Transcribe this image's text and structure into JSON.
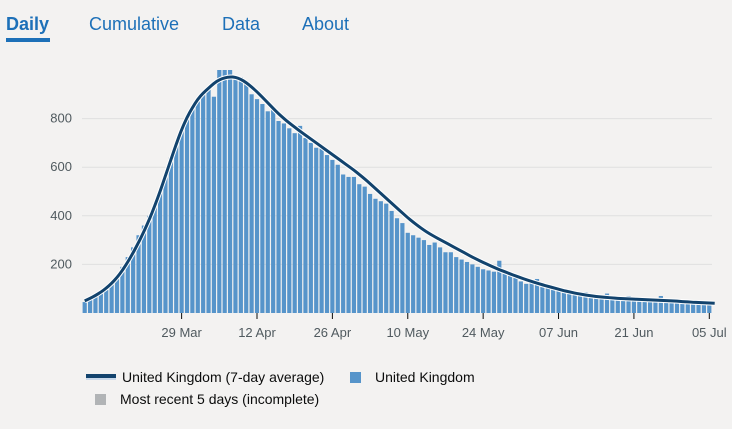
{
  "tabs": [
    {
      "label": "Daily",
      "active": true
    },
    {
      "label": "Cumulative",
      "active": false
    },
    {
      "label": "Data",
      "active": false
    },
    {
      "label": "About",
      "active": false
    }
  ],
  "legend": {
    "average_label": "United Kingdom (7-day average)",
    "bars_label": "United Kingdom",
    "incomplete_label": "Most recent 5 days (incomplete)"
  },
  "colors": {
    "bar": "#5694ca",
    "line": "#12436d",
    "incomplete": "#b1b4b6",
    "grid": "#e0e0e0",
    "tab": "#1d70b8"
  },
  "chart_data": {
    "type": "bar",
    "x_tick_labels": [
      "29 Mar",
      "12 Apr",
      "26 Apr",
      "10 May",
      "24 May",
      "07 Jun",
      "21 Jun",
      "05 Jul"
    ],
    "x_tick_indices": [
      18,
      32,
      46,
      60,
      74,
      88,
      102,
      116
    ],
    "y_ticks": [
      200,
      400,
      600,
      800
    ],
    "ylim": [
      0,
      1000
    ],
    "grid": true,
    "series": [
      {
        "name": "United Kingdom",
        "kind": "bar",
        "values": [
          45,
          55,
          70,
          80,
          95,
          120,
          150,
          190,
          230,
          270,
          320,
          360,
          400,
          440,
          500,
          560,
          640,
          700,
          760,
          800,
          840,
          870,
          910,
          920,
          890,
          1000,
          1000,
          1000,
          960,
          970,
          950,
          900,
          880,
          860,
          830,
          840,
          790,
          780,
          760,
          740,
          770,
          720,
          700,
          680,
          680,
          650,
          630,
          610,
          570,
          560,
          560,
          530,
          520,
          490,
          470,
          460,
          450,
          420,
          390,
          370,
          330,
          320,
          310,
          300,
          280,
          290,
          270,
          250,
          250,
          230,
          220,
          210,
          200,
          190,
          180,
          175,
          170,
          215,
          165,
          160,
          150,
          130,
          120,
          130,
          140,
          120,
          110,
          100,
          95,
          95,
          90,
          85,
          80,
          85,
          78,
          75,
          70,
          80,
          72,
          68,
          65,
          70,
          66,
          64,
          62,
          60,
          58,
          70,
          55,
          52,
          50,
          48,
          46,
          45,
          44,
          42,
          40
        ],
        "incomplete_count": 5
      },
      {
        "name": "United Kingdom (7-day average)",
        "kind": "line",
        "values": [
          50,
          60,
          72,
          86,
          102,
          122,
          146,
          175,
          210,
          248,
          290,
          335,
          385,
          440,
          500,
          565,
          630,
          695,
          755,
          805,
          845,
          880,
          905,
          925,
          945,
          960,
          968,
          972,
          970,
          962,
          948,
          930,
          910,
          888,
          865,
          842,
          820,
          800,
          782,
          765,
          748,
          732,
          716,
          700,
          684,
          668,
          652,
          636,
          620,
          604,
          588,
          570,
          552,
          532,
          512,
          492,
          472,
          452,
          432,
          412,
          392,
          374,
          357,
          341,
          327,
          314,
          302,
          290,
          278,
          266,
          254,
          242,
          230,
          219,
          208,
          198,
          188,
          178,
          170,
          161,
          153,
          145,
          137,
          130,
          123,
          116,
          110,
          104,
          98,
          92,
          87,
          82,
          78,
          74,
          71,
          68,
          66,
          64,
          62,
          60,
          59,
          58,
          57,
          56,
          55,
          54,
          53,
          52,
          51,
          50,
          49,
          47,
          46,
          44,
          43,
          42,
          41,
          40
        ]
      }
    ],
    "title": "",
    "xlabel": "",
    "ylabel": ""
  }
}
